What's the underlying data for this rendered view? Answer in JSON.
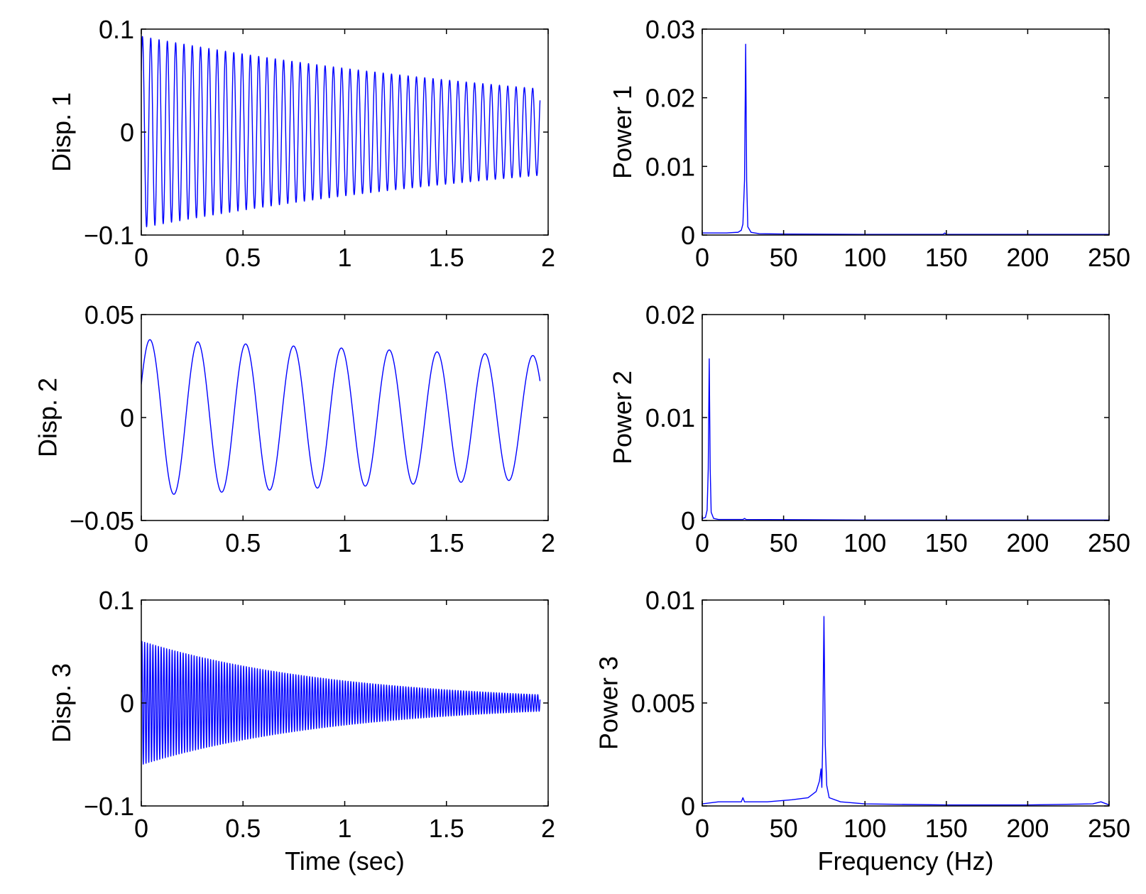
{
  "figure": {
    "line_color": "#0000ff",
    "background": "#ffffff"
  },
  "chart_data": [
    {
      "id": "disp1",
      "type": "line",
      "domain": "time",
      "title": "",
      "xlabel": "",
      "ylabel": "Disp. 1",
      "xlim": [
        0,
        2
      ],
      "ylim": [
        -0.1,
        0.1
      ],
      "xticks": [
        0,
        0.5,
        1,
        1.5,
        2
      ],
      "xtick_labels": [
        "0",
        "0.5",
        "1",
        "1.5",
        "2"
      ],
      "yticks": [
        -0.1,
        0,
        0.1
      ],
      "ytick_labels": [
        "−0.1",
        "0",
        "0.1"
      ],
      "series": [
        {
          "name": "Disp. 1",
          "color": "#0000ff",
          "signal": {
            "frequency_hz": 24.5,
            "amplitude_start": 0.093,
            "amplitude_end": 0.042,
            "decay": "exponential",
            "t_start": 0,
            "t_end": 1.96,
            "phase_deg": 40
          }
        }
      ]
    },
    {
      "id": "power1",
      "type": "line",
      "domain": "frequency",
      "title": "",
      "xlabel": "",
      "ylabel": "Power 1",
      "xlim": [
        0,
        250
      ],
      "ylim": [
        0,
        0.03
      ],
      "xticks": [
        0,
        50,
        100,
        150,
        200,
        250
      ],
      "xtick_labels": [
        "0",
        "50",
        "100",
        "150",
        "200",
        "250"
      ],
      "yticks": [
        0,
        0.01,
        0.02,
        0.03
      ],
      "ytick_labels": [
        "0",
        "0.01",
        "0.02",
        "0.03"
      ],
      "series": [
        {
          "name": "Power 1",
          "color": "#0000ff",
          "points": [
            [
              0,
              0.0003
            ],
            [
              15,
              0.0003
            ],
            [
              22,
              0.0004
            ],
            [
              24,
              0.0007
            ],
            [
              25,
              0.0016
            ],
            [
              26,
              0.008
            ],
            [
              26.7,
              0.0278
            ],
            [
              27.3,
              0.008
            ],
            [
              28,
              0.0012
            ],
            [
              30,
              0.0004
            ],
            [
              35,
              0.0002
            ],
            [
              50,
              0.00015
            ],
            [
              100,
              0.0001
            ],
            [
              148,
              0.0001
            ],
            [
              149,
              0.0003
            ],
            [
              150,
              0.0001
            ],
            [
              200,
              0.0001
            ],
            [
              250,
              0.0001
            ]
          ]
        }
      ]
    },
    {
      "id": "disp2",
      "type": "line",
      "domain": "time",
      "title": "",
      "xlabel": "",
      "ylabel": "Disp. 2",
      "xlim": [
        0,
        2
      ],
      "ylim": [
        -0.05,
        0.05
      ],
      "xticks": [
        0,
        0.5,
        1,
        1.5,
        2
      ],
      "xtick_labels": [
        "0",
        "0.5",
        "1",
        "1.5",
        "2"
      ],
      "yticks": [
        -0.05,
        0,
        0.05
      ],
      "ytick_labels": [
        "−0.05",
        "0",
        "0.05"
      ],
      "series": [
        {
          "name": "Disp. 2",
          "color": "#0000ff",
          "signal": {
            "frequency_hz": 4.25,
            "amplitude_start": 0.038,
            "amplitude_end": 0.03,
            "decay": "exponential",
            "t_start": 0,
            "t_end": 1.96,
            "phase_deg": 25
          }
        }
      ]
    },
    {
      "id": "power2",
      "type": "line",
      "domain": "frequency",
      "title": "",
      "xlabel": "",
      "ylabel": "Power 2",
      "xlim": [
        0,
        250
      ],
      "ylim": [
        0,
        0.02
      ],
      "xticks": [
        0,
        50,
        100,
        150,
        200,
        250
      ],
      "xtick_labels": [
        "0",
        "50",
        "100",
        "150",
        "200",
        "250"
      ],
      "yticks": [
        0,
        0.01,
        0.02
      ],
      "ytick_labels": [
        "0",
        "0.01",
        "0.02"
      ],
      "series": [
        {
          "name": "Power 2",
          "color": "#0000ff",
          "points": [
            [
              0,
              0.0002
            ],
            [
              2,
              0.0003
            ],
            [
              3,
              0.001
            ],
            [
              3.7,
              0.005
            ],
            [
              4.3,
              0.0157
            ],
            [
              4.9,
              0.005
            ],
            [
              5.5,
              0.0008
            ],
            [
              7,
              0.0002
            ],
            [
              10,
              0.0001
            ],
            [
              25,
              0.0001
            ],
            [
              26,
              0.0002
            ],
            [
              27,
              0.0001
            ],
            [
              100,
              5e-05
            ],
            [
              250,
              5e-05
            ]
          ]
        }
      ]
    },
    {
      "id": "disp3",
      "type": "line",
      "domain": "time",
      "title": "",
      "xlabel": "Time (sec)",
      "ylabel": "Disp. 3",
      "xlim": [
        0,
        2
      ],
      "ylim": [
        -0.1,
        0.1
      ],
      "xticks": [
        0,
        0.5,
        1,
        1.5,
        2
      ],
      "xtick_labels": [
        "0",
        "0.5",
        "1",
        "1.5",
        "2"
      ],
      "yticks": [
        -0.1,
        0,
        0.1
      ],
      "ytick_labels": [
        "−0.1",
        "0",
        "0.1"
      ],
      "series": [
        {
          "name": "Disp. 3",
          "color": "#0000ff",
          "signal": {
            "frequency_hz": 74,
            "amplitude_start": 0.06,
            "amplitude_end": 0.008,
            "decay": "exponential",
            "t_start": 0,
            "t_end": 1.96,
            "phase_deg": 10
          }
        }
      ]
    },
    {
      "id": "power3",
      "type": "line",
      "domain": "frequency",
      "title": "",
      "xlabel": "Frequency (Hz)",
      "ylabel": "Power 3",
      "xlim": [
        0,
        250
      ],
      "ylim": [
        0,
        0.01
      ],
      "xticks": [
        0,
        50,
        100,
        150,
        200,
        250
      ],
      "xtick_labels": [
        "0",
        "50",
        "100",
        "150",
        "200",
        "250"
      ],
      "yticks": [
        0,
        0.005,
        0.01
      ],
      "ytick_labels": [
        "0",
        "0.005",
        "0.01"
      ],
      "series": [
        {
          "name": "Power 3",
          "color": "#0000ff",
          "points": [
            [
              0,
              0.0001
            ],
            [
              10,
              0.0002
            ],
            [
              24,
              0.0002
            ],
            [
              25,
              0.0004
            ],
            [
              26,
              0.0002
            ],
            [
              40,
              0.0002
            ],
            [
              55,
              0.0003
            ],
            [
              65,
              0.0004
            ],
            [
              70,
              0.0007
            ],
            [
              72,
              0.0012
            ],
            [
              73,
              0.0018
            ],
            [
              73.5,
              0.0009
            ],
            [
              74,
              0.003
            ],
            [
              74.8,
              0.0092
            ],
            [
              75.6,
              0.003
            ],
            [
              76.5,
              0.001
            ],
            [
              78,
              0.0004
            ],
            [
              85,
              0.0002
            ],
            [
              100,
              0.0001
            ],
            [
              150,
              5e-05
            ],
            [
              200,
              5e-05
            ],
            [
              240,
              0.0001
            ],
            [
              245,
              0.0002
            ],
            [
              250,
              5e-05
            ]
          ]
        }
      ]
    }
  ]
}
